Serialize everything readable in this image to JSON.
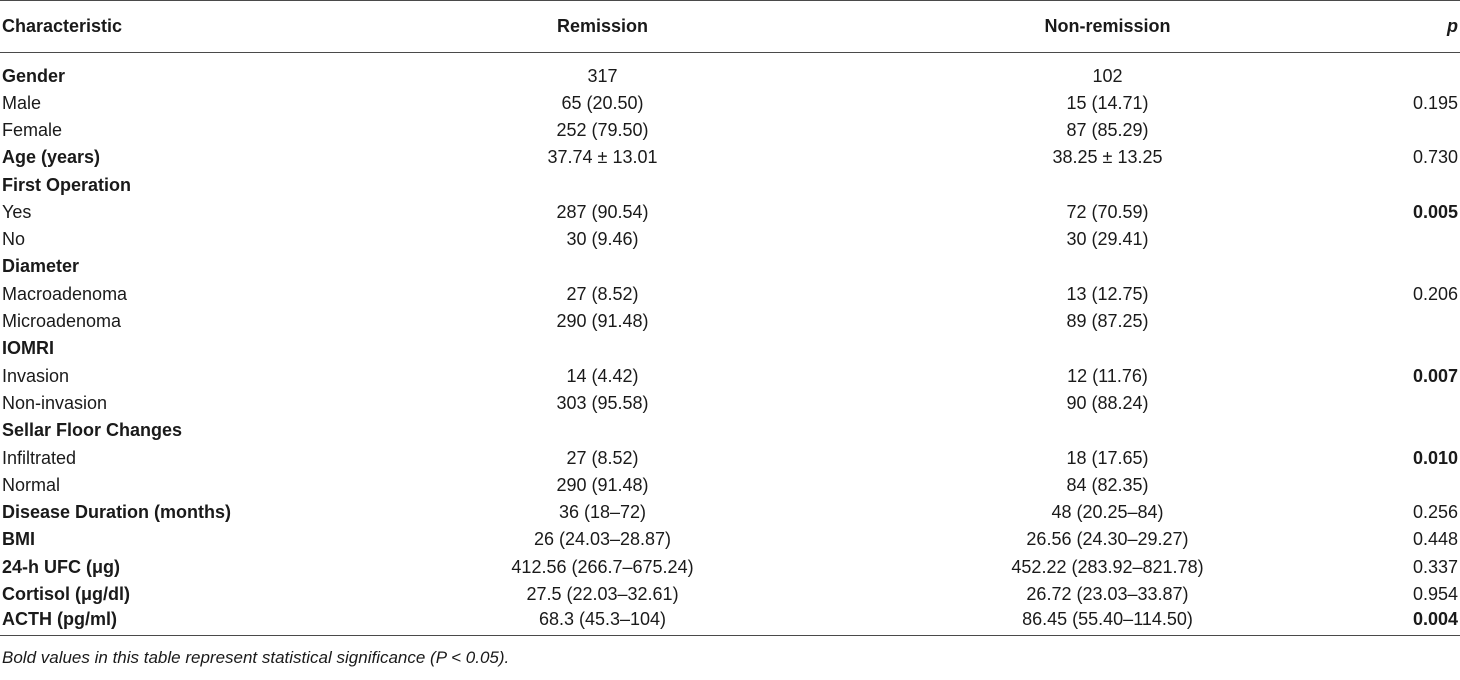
{
  "header": {
    "characteristic": "Characteristic",
    "remission": "Remission",
    "non_remission": "Non-remission",
    "p": "p"
  },
  "rows": [
    {
      "label": "Gender",
      "bold": true,
      "remission": "317",
      "non_remission": "102",
      "p": "",
      "sig": false
    },
    {
      "label": "Male",
      "bold": false,
      "remission": "65 (20.50)",
      "non_remission": "15 (14.71)",
      "p": "0.195",
      "sig": false
    },
    {
      "label": "Female",
      "bold": false,
      "remission": "252 (79.50)",
      "non_remission": "87 (85.29)",
      "p": "",
      "sig": false
    },
    {
      "label": "Age (years)",
      "bold": true,
      "remission": "37.74 ± 13.01",
      "non_remission": "38.25 ± 13.25",
      "p": "0.730",
      "sig": false
    },
    {
      "label": "First Operation",
      "bold": true,
      "remission": "",
      "non_remission": "",
      "p": "",
      "sig": false
    },
    {
      "label": "Yes",
      "bold": false,
      "remission": "287 (90.54)",
      "non_remission": "72 (70.59)",
      "p": "0.005",
      "sig": true
    },
    {
      "label": "No",
      "bold": false,
      "remission": "30 (9.46)",
      "non_remission": "30 (29.41)",
      "p": "",
      "sig": false
    },
    {
      "label": "Diameter",
      "bold": true,
      "remission": "",
      "non_remission": "",
      "p": "",
      "sig": false
    },
    {
      "label": "Macroadenoma",
      "bold": false,
      "remission": "27 (8.52)",
      "non_remission": "13 (12.75)",
      "p": "0.206",
      "sig": false
    },
    {
      "label": "Microadenoma",
      "bold": false,
      "remission": "290 (91.48)",
      "non_remission": "89 (87.25)",
      "p": "",
      "sig": false
    },
    {
      "label": "IOMRI",
      "bold": true,
      "remission": "",
      "non_remission": "",
      "p": "",
      "sig": false
    },
    {
      "label": "Invasion",
      "bold": false,
      "remission": "14 (4.42)",
      "non_remission": "12 (11.76)",
      "p": "0.007",
      "sig": true
    },
    {
      "label": "Non-invasion",
      "bold": false,
      "remission": "303 (95.58)",
      "non_remission": "90 (88.24)",
      "p": "",
      "sig": false
    },
    {
      "label": "Sellar Floor Changes",
      "bold": true,
      "remission": "",
      "non_remission": "",
      "p": "",
      "sig": false
    },
    {
      "label": "Infiltrated",
      "bold": false,
      "remission": "27 (8.52)",
      "non_remission": "18 (17.65)",
      "p": "0.010",
      "sig": true
    },
    {
      "label": "Normal",
      "bold": false,
      "remission": "290 (91.48)",
      "non_remission": "84 (82.35)",
      "p": "",
      "sig": false
    },
    {
      "label": "Disease Duration (months)",
      "bold": true,
      "remission": "36 (18–72)",
      "non_remission": "48 (20.25–84)",
      "p": "0.256",
      "sig": false
    },
    {
      "label": "BMI",
      "bold": true,
      "remission": "26 (24.03–28.87)",
      "non_remission": "26.56 (24.30–29.27)",
      "p": "0.448",
      "sig": false
    },
    {
      "label": "24-h UFC (μg)",
      "bold": true,
      "remission": "412.56 (266.7–675.24)",
      "non_remission": "452.22 (283.92–821.78)",
      "p": "0.337",
      "sig": false
    },
    {
      "label": "Cortisol (μg/dl)",
      "bold": true,
      "remission": "27.5 (22.03–32.61)",
      "non_remission": "26.72 (23.03–33.87)",
      "p": "0.954",
      "sig": false
    },
    {
      "label": "ACTH (pg/ml)",
      "bold": true,
      "remission": "68.3 (45.3–104)",
      "non_remission": "86.45 (55.40–114.50)",
      "p": "0.004",
      "sig": true
    }
  ],
  "footnote": "Bold values in this table represent statistical significance (P < 0.05)."
}
